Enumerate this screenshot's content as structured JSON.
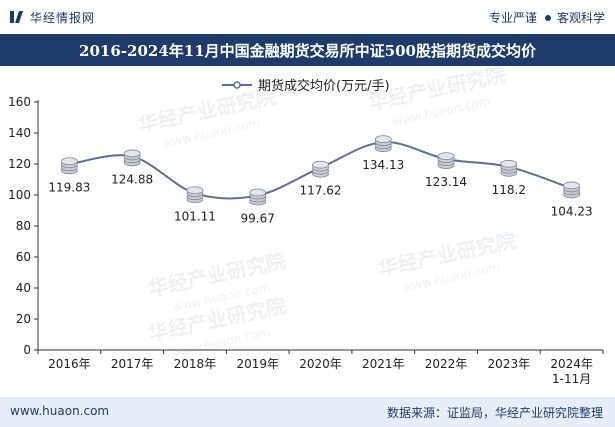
{
  "header": {
    "brand_name": "华经情报网",
    "slogan_left": "专业严谨",
    "slogan_right": "客观科学"
  },
  "footer": {
    "website": "www.huaon.com",
    "source": "数据来源：证监局，华经产业研究院整理"
  },
  "watermark": {
    "cn": "华经产业研究院",
    "url": "www.huaon.com"
  },
  "colors": {
    "title_bg": "#1f3a6b",
    "line": "#5b6f9a",
    "footer_bg": "#e8eef7"
  },
  "chart_data": {
    "type": "line",
    "title": "2016-2024年11月中国金融期货交易所中证500股指期货成交均价",
    "legend": "期货成交均价(万元/手)",
    "legend_position": "top-center",
    "categories": [
      "2016年",
      "2017年",
      "2018年",
      "2019年",
      "2020年",
      "2021年",
      "2022年",
      "2023年",
      "2024年\n1-11月"
    ],
    "series": [
      {
        "name": "期货成交均价(万元/手)",
        "values": [
          119.83,
          124.88,
          101.11,
          99.67,
          117.62,
          134.13,
          123.14,
          118.2,
          104.23
        ],
        "labels": [
          "119.83",
          "124.88",
          "101.11",
          "99.67",
          "117.62",
          "134.13",
          "123.14",
          "118.2",
          "104.23"
        ]
      }
    ],
    "ylim": [
      0,
      160
    ],
    "yticks": [
      0,
      20,
      40,
      60,
      80,
      100,
      120,
      140,
      160
    ],
    "xlabel": "",
    "ylabel": "",
    "grid": false
  }
}
